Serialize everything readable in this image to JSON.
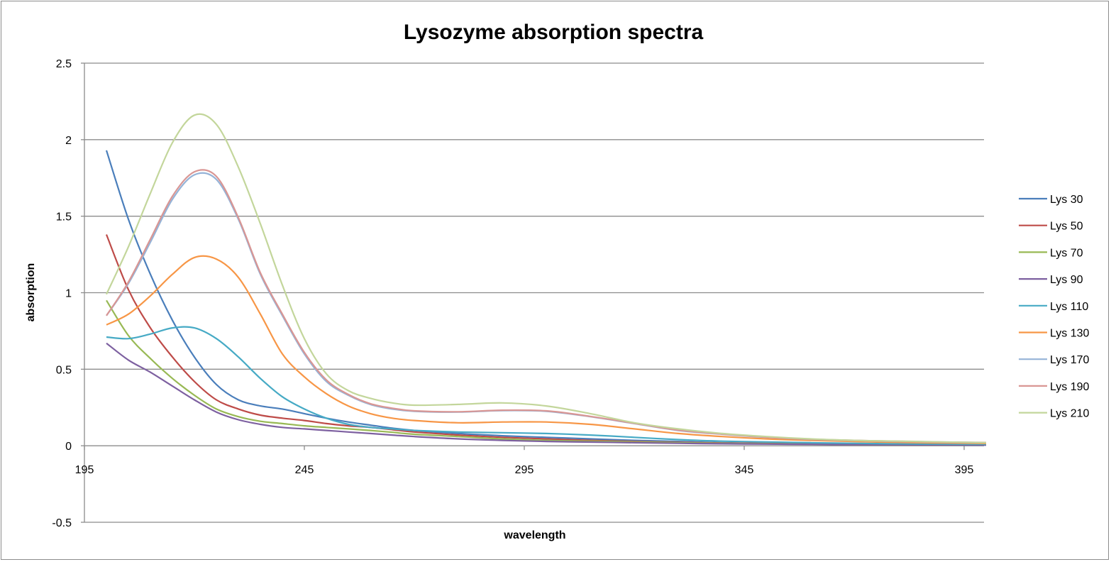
{
  "chart_data": {
    "type": "line",
    "title": "Lysozyme absorption spectra",
    "xlabel": "wavelength",
    "ylabel": "absorption",
    "xlim": [
      195,
      400
    ],
    "ylim": [
      -0.5,
      2.5
    ],
    "xticks": [
      195,
      245,
      295,
      345,
      395
    ],
    "yticks": [
      -0.5,
      0,
      0.5,
      1,
      1.5,
      2,
      2.5
    ],
    "grid": "horizontal",
    "legend_position": "right",
    "x": [
      200,
      205,
      210,
      215,
      220,
      225,
      230,
      235,
      240,
      245,
      250,
      255,
      260,
      265,
      270,
      280,
      290,
      300,
      310,
      320,
      330,
      340,
      350,
      360,
      370,
      380,
      390,
      400
    ],
    "series": [
      {
        "name": "Lys 30",
        "color": "#4a7ebb",
        "values": [
          1.93,
          1.48,
          1.12,
          0.82,
          0.58,
          0.4,
          0.3,
          0.26,
          0.24,
          0.21,
          0.18,
          0.155,
          0.135,
          0.115,
          0.1,
          0.08,
          0.065,
          0.055,
          0.045,
          0.035,
          0.028,
          0.02,
          0.015,
          0.012,
          0.01,
          0.008,
          0.006,
          0.005
        ]
      },
      {
        "name": "Lys 50",
        "color": "#be4b48",
        "values": [
          1.38,
          1.02,
          0.77,
          0.58,
          0.42,
          0.3,
          0.24,
          0.2,
          0.18,
          0.165,
          0.145,
          0.13,
          0.12,
          0.105,
          0.09,
          0.07,
          0.055,
          0.045,
          0.035,
          0.028,
          0.022,
          0.018,
          0.015,
          0.012,
          0.01,
          0.008,
          0.007,
          0.006
        ]
      },
      {
        "name": "Lys 70",
        "color": "#98b954",
        "values": [
          0.95,
          0.72,
          0.57,
          0.44,
          0.33,
          0.24,
          0.19,
          0.16,
          0.145,
          0.13,
          0.12,
          0.11,
          0.1,
          0.088,
          0.075,
          0.06,
          0.045,
          0.035,
          0.03,
          0.025,
          0.02,
          0.016,
          0.013,
          0.011,
          0.01,
          0.009,
          0.008,
          0.007
        ]
      },
      {
        "name": "Lys 90",
        "color": "#7d60a0",
        "values": [
          0.67,
          0.56,
          0.48,
          0.39,
          0.3,
          0.22,
          0.17,
          0.14,
          0.12,
          0.11,
          0.1,
          0.09,
          0.08,
          0.07,
          0.06,
          0.045,
          0.035,
          0.028,
          0.024,
          0.02,
          0.016,
          0.013,
          0.011,
          0.009,
          0.008,
          0.007,
          0.006,
          0.005
        ]
      },
      {
        "name": "Lys 110",
        "color": "#46aac5",
        "values": [
          0.71,
          0.7,
          0.73,
          0.77,
          0.77,
          0.7,
          0.58,
          0.44,
          0.32,
          0.24,
          0.18,
          0.14,
          0.12,
          0.11,
          0.1,
          0.09,
          0.085,
          0.08,
          0.07,
          0.055,
          0.04,
          0.03,
          0.025,
          0.02,
          0.016,
          0.013,
          0.011,
          0.01
        ]
      },
      {
        "name": "Lys 130",
        "color": "#f79646",
        "values": [
          0.79,
          0.86,
          0.98,
          1.12,
          1.23,
          1.22,
          1.1,
          0.86,
          0.6,
          0.45,
          0.34,
          0.26,
          0.21,
          0.18,
          0.165,
          0.15,
          0.155,
          0.155,
          0.14,
          0.11,
          0.08,
          0.06,
          0.045,
          0.035,
          0.028,
          0.022,
          0.018,
          0.015
        ]
      },
      {
        "name": "Lys 170",
        "color": "#95b3d7",
        "values": [
          0.85,
          1.06,
          1.33,
          1.61,
          1.77,
          1.74,
          1.48,
          1.12,
          0.85,
          0.6,
          0.42,
          0.33,
          0.27,
          0.24,
          0.225,
          0.22,
          0.23,
          0.225,
          0.19,
          0.145,
          0.1,
          0.075,
          0.055,
          0.042,
          0.034,
          0.028,
          0.023,
          0.02
        ]
      },
      {
        "name": "Lys 190",
        "color": "#d99694",
        "values": [
          0.85,
          1.07,
          1.35,
          1.63,
          1.79,
          1.76,
          1.49,
          1.13,
          0.86,
          0.61,
          0.43,
          0.335,
          0.275,
          0.245,
          0.228,
          0.222,
          0.232,
          0.228,
          0.192,
          0.147,
          0.102,
          0.077,
          0.056,
          0.043,
          0.035,
          0.029,
          0.024,
          0.021
        ]
      },
      {
        "name": "Lys 210",
        "color": "#c3d69b",
        "values": [
          0.99,
          1.3,
          1.65,
          1.98,
          2.16,
          2.1,
          1.82,
          1.45,
          1.05,
          0.7,
          0.47,
          0.36,
          0.31,
          0.28,
          0.265,
          0.27,
          0.28,
          0.26,
          0.21,
          0.15,
          0.11,
          0.08,
          0.06,
          0.045,
          0.035,
          0.03,
          0.025,
          0.02
        ]
      }
    ]
  }
}
